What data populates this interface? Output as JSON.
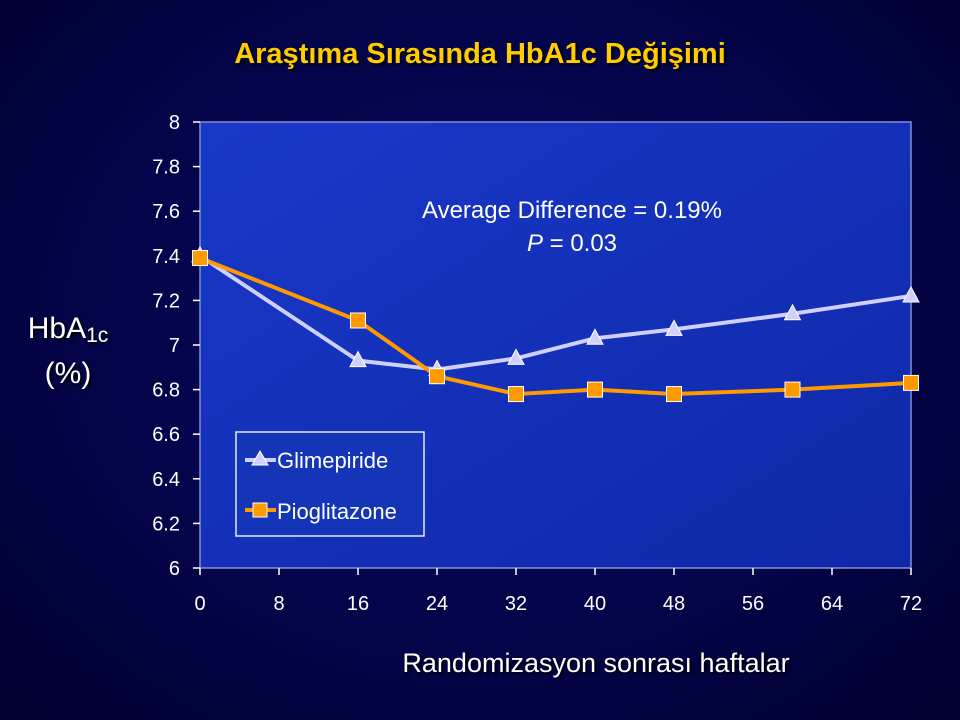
{
  "chart_data": {
    "type": "line",
    "title": "Araştıma Sırasında HbA1c Değişimi",
    "ylabel_main": "HbA",
    "ylabel_sub": "1c",
    "ylabel_unit": "(%)",
    "xlabel": "Randomizasyon sonrası haftalar",
    "xlim": [
      0,
      72
    ],
    "ylim": [
      6,
      8
    ],
    "xticks": [
      0,
      8,
      16,
      24,
      32,
      40,
      48,
      56,
      64,
      72
    ],
    "yticks": [
      6,
      6.2,
      6.4,
      6.6,
      6.8,
      7,
      7.2,
      7.4,
      7.6,
      7.8,
      8
    ],
    "annotation_line1": "Average Difference = 0.19%",
    "annotation_p": "P",
    "annotation_rest": " = 0.03",
    "legend_position": "bottom-left",
    "series": [
      {
        "name": "Glimepiride",
        "color": "#d0d0ff",
        "marker": "triangle",
        "x": [
          0,
          16,
          24,
          32,
          40,
          48,
          60,
          72
        ],
        "y": [
          7.4,
          6.93,
          6.89,
          6.94,
          7.03,
          7.07,
          7.14,
          7.22
        ]
      },
      {
        "name": "Pioglitazone",
        "color": "#ff9900",
        "marker": "square",
        "x": [
          0,
          16,
          24,
          32,
          40,
          48,
          60,
          72
        ],
        "y": [
          7.39,
          7.11,
          6.86,
          6.78,
          6.8,
          6.78,
          6.8,
          6.83
        ]
      }
    ]
  }
}
